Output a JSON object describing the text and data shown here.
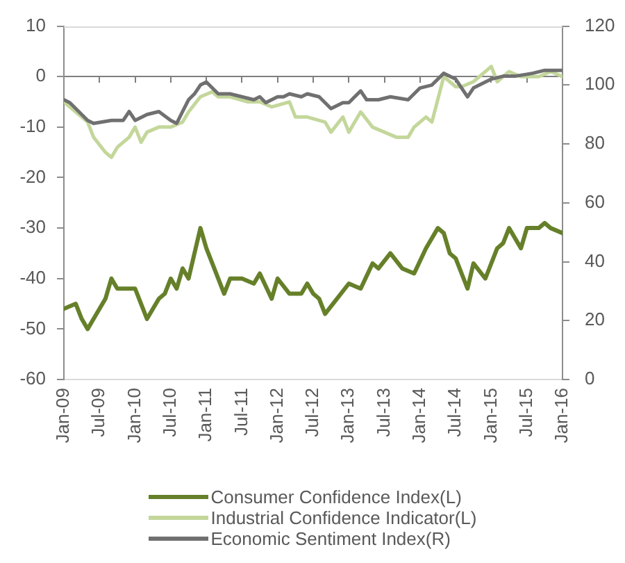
{
  "chart_data": {
    "type": "line",
    "xlim": [
      "2009-01",
      "2016-01"
    ],
    "xticks": [
      {
        "value": "2009-01",
        "label": "Jan-09"
      },
      {
        "value": "2009-07",
        "label": "Jul-09"
      },
      {
        "value": "2010-01",
        "label": "Jan-10"
      },
      {
        "value": "2010-07",
        "label": "Jul-10"
      },
      {
        "value": "2011-01",
        "label": "Jan-11"
      },
      {
        "value": "2011-07",
        "label": "Jul-11"
      },
      {
        "value": "2012-01",
        "label": "Jan-12"
      },
      {
        "value": "2012-07",
        "label": "Jul-12"
      },
      {
        "value": "2013-01",
        "label": "Jan-13"
      },
      {
        "value": "2013-07",
        "label": "Jul-13"
      },
      {
        "value": "2014-01",
        "label": "Jan-14"
      },
      {
        "value": "2014-07",
        "label": "Jul-14"
      },
      {
        "value": "2015-01",
        "label": "Jan-15"
      },
      {
        "value": "2015-07",
        "label": "Jul-15"
      },
      {
        "value": "2016-01",
        "label": "Jan-16"
      }
    ],
    "ylim": [
      -60,
      10
    ],
    "yticks": [
      -60,
      -50,
      -40,
      -30,
      -20,
      -10,
      0,
      10
    ],
    "y2lim": [
      0,
      120
    ],
    "y2ticks": [
      0,
      20,
      40,
      60,
      80,
      100,
      120
    ],
    "series": [
      {
        "name": "Consumer Confidence Index(L)",
        "color": "#66802a",
        "x": [
          "2009-01",
          "2009-03",
          "2009-04",
          "2009-05",
          "2009-06",
          "2009-08",
          "2009-09",
          "2009-10",
          "2009-11",
          "2010-01",
          "2010-02",
          "2010-03",
          "2010-05",
          "2010-06",
          "2010-07",
          "2010-08",
          "2010-09",
          "2010-10",
          "2010-11",
          "2010-12",
          "2011-01",
          "2011-02",
          "2011-04",
          "2011-05",
          "2011-07",
          "2011-09",
          "2011-10",
          "2011-12",
          "2012-01",
          "2012-03",
          "2012-05",
          "2012-06",
          "2012-07",
          "2012-08",
          "2012-09",
          "2012-11",
          "2013-01",
          "2013-03",
          "2013-05",
          "2013-06",
          "2013-08",
          "2013-10",
          "2013-12",
          "2014-02",
          "2014-04",
          "2014-05",
          "2014-06",
          "2014-07",
          "2014-09",
          "2014-10",
          "2014-12",
          "2015-02",
          "2015-03",
          "2015-04",
          "2015-06",
          "2015-07",
          "2015-09",
          "2015-10",
          "2015-11",
          "2016-01"
        ],
        "values": [
          -46,
          -45,
          -48,
          -50,
          -48,
          -44,
          -40,
          -42,
          -42,
          -42,
          -45,
          -48,
          -44,
          -43,
          -40,
          -42,
          -38,
          -40,
          -35,
          -30,
          -34,
          -37,
          -43,
          -40,
          -40,
          -41,
          -39,
          -44,
          -40,
          -43,
          -43,
          -41,
          -43,
          -44,
          -47,
          -44,
          -41,
          -42,
          -37,
          -38,
          -35,
          -38,
          -39,
          -34,
          -30,
          -31,
          -35,
          -36,
          -42,
          -37,
          -40,
          -34,
          -33,
          -30,
          -34,
          -30,
          -30,
          -29,
          -30,
          -31
        ]
      },
      {
        "name": "Industrial Confidence Indicator(L)",
        "color": "#c4d79b",
        "x": [
          "2009-01",
          "2009-02",
          "2009-05",
          "2009-06",
          "2009-08",
          "2009-09",
          "2009-10",
          "2009-12",
          "2010-01",
          "2010-02",
          "2010-03",
          "2010-05",
          "2010-07",
          "2010-09",
          "2010-10",
          "2010-12",
          "2011-02",
          "2011-03",
          "2011-05",
          "2011-08",
          "2011-10",
          "2011-12",
          "2012-03",
          "2012-04",
          "2012-06",
          "2012-09",
          "2012-10",
          "2012-12",
          "2013-01",
          "2013-03",
          "2013-05",
          "2013-07",
          "2013-09",
          "2013-11",
          "2013-12",
          "2014-02",
          "2014-03",
          "2014-05",
          "2014-07",
          "2014-08",
          "2014-10",
          "2015-01",
          "2015-02",
          "2015-04",
          "2015-06",
          "2015-09",
          "2015-11",
          "2016-01"
        ],
        "values": [
          -5,
          -6,
          -9,
          -12,
          -15,
          -16,
          -14,
          -12,
          -10,
          -13,
          -11,
          -10,
          -10,
          -9,
          -7,
          -4,
          -3,
          -4,
          -4,
          -5,
          -5,
          -6,
          -5,
          -8,
          -8,
          -9,
          -11,
          -8,
          -11,
          -7,
          -10,
          -11,
          -12,
          -12,
          -10,
          -8,
          -9,
          0,
          -2,
          -2,
          -1,
          2,
          -1,
          1,
          0,
          0,
          1,
          0
        ]
      },
      {
        "name": "Economic Sentiment Index(R)",
        "color": "#707070",
        "axis": "y2",
        "x": [
          "2009-01",
          "2009-02",
          "2009-05",
          "2009-06",
          "2009-09",
          "2009-11",
          "2009-12",
          "2010-01",
          "2010-03",
          "2010-05",
          "2010-07",
          "2010-08",
          "2010-09",
          "2010-10",
          "2010-11",
          "2010-12",
          "2011-01",
          "2011-02",
          "2011-03",
          "2011-05",
          "2011-07",
          "2011-09",
          "2011-10",
          "2011-11",
          "2012-01",
          "2012-02",
          "2012-03",
          "2012-05",
          "2012-06",
          "2012-08",
          "2012-10",
          "2012-12",
          "2013-01",
          "2013-03",
          "2013-04",
          "2013-06",
          "2013-08",
          "2013-11",
          "2014-01",
          "2014-03",
          "2014-05",
          "2014-07",
          "2014-09",
          "2014-10",
          "2015-01",
          "2015-03",
          "2015-05",
          "2015-08",
          "2015-10",
          "2016-01"
        ],
        "values": [
          95,
          94,
          88,
          87,
          88,
          88,
          91,
          88,
          90,
          91,
          88,
          87,
          91,
          95,
          97,
          100,
          101,
          99,
          97,
          97,
          96,
          95,
          96,
          94,
          96,
          96,
          97,
          96,
          97,
          96,
          92,
          94,
          94,
          98,
          95,
          95,
          96,
          95,
          99,
          100,
          104,
          102,
          96,
          99,
          102,
          103,
          103,
          104,
          105,
          105
        ]
      }
    ],
    "legend": "bottom",
    "marker": "none",
    "line_style": "solid"
  }
}
